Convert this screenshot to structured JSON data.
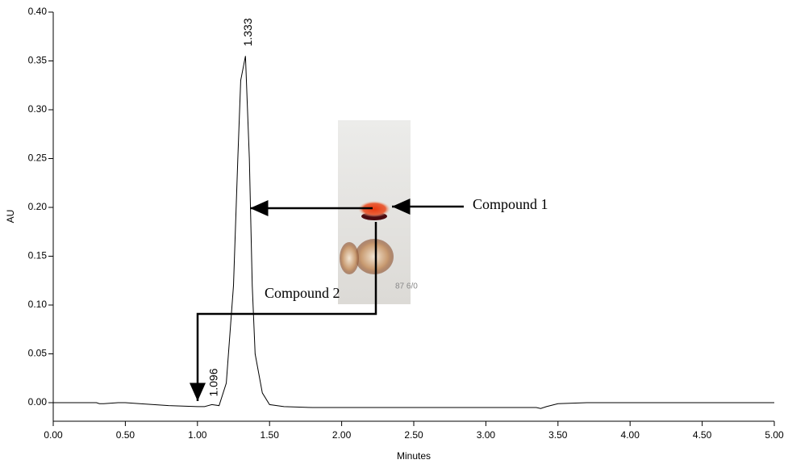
{
  "chart_data": {
    "type": "line",
    "y_label": "AU",
    "x_label": "Minutes",
    "xlim": [
      0,
      5
    ],
    "ylim": [
      -0.019,
      0.4
    ],
    "xticks": [
      {
        "value": 0,
        "label": "0.00"
      },
      {
        "value": 0.5,
        "label": "0.50"
      },
      {
        "value": 1,
        "label": "1.00"
      },
      {
        "value": 1.5,
        "label": "1.50"
      },
      {
        "value": 2,
        "label": "2.00"
      },
      {
        "value": 2.5,
        "label": "2.50"
      },
      {
        "value": 3,
        "label": "3.00"
      },
      {
        "value": 3.5,
        "label": "3.50"
      },
      {
        "value": 4,
        "label": "4.00"
      },
      {
        "value": 4.5,
        "label": "4.50"
      },
      {
        "value": 5,
        "label": "5.00"
      }
    ],
    "yticks": [
      {
        "value": 0,
        "label": "0.00"
      },
      {
        "value": 0.05,
        "label": "0.05"
      },
      {
        "value": 0.1,
        "label": "0.10"
      },
      {
        "value": 0.15,
        "label": "0.15"
      },
      {
        "value": 0.2,
        "label": "0.20"
      },
      {
        "value": 0.25,
        "label": "0.25"
      },
      {
        "value": 0.3,
        "label": "0.30"
      },
      {
        "value": 0.35,
        "label": "0.35"
      },
      {
        "value": 0.4,
        "label": "0.40"
      }
    ],
    "x": [
      0,
      0.3,
      0.32,
      0.35,
      0.45,
      0.5,
      0.6,
      0.8,
      1.0,
      1.05,
      1.1,
      1.15,
      1.2,
      1.25,
      1.28,
      1.3,
      1.333,
      1.36,
      1.38,
      1.4,
      1.45,
      1.5,
      1.6,
      1.8,
      2.5,
      3.3,
      3.35,
      3.38,
      3.42,
      3.5,
      3.7,
      4.0,
      5.0
    ],
    "series": [
      {
        "color": "#000000",
        "values": [
          0,
          0,
          -0.001,
          -0.001,
          0,
          0,
          -0.001,
          -0.003,
          -0.004,
          -0.004,
          -0.002,
          -0.003,
          0.02,
          0.12,
          0.25,
          0.33,
          0.355,
          0.25,
          0.12,
          0.05,
          0.01,
          -0.002,
          -0.004,
          -0.005,
          -0.005,
          -0.005,
          -0.005,
          -0.006,
          -0.004,
          -0.001,
          0,
          0,
          0
        ]
      }
    ],
    "peak_labels": [
      1.333,
      1.096
    ],
    "annotations": [
      "Compound 1",
      "Compound 2"
    ]
  }
}
